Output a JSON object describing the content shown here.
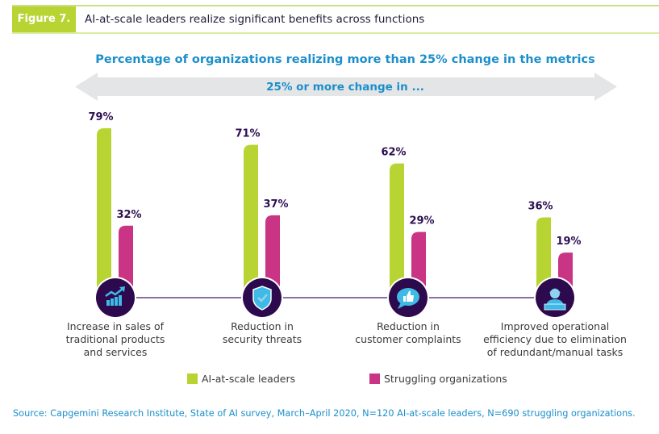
{
  "header": {
    "figure_label": "Figure 7.",
    "title": "AI-at-scale leaders realize significant benefits across functions"
  },
  "colors": {
    "leaders": "#b7d433",
    "struggling": "#c93485",
    "icon_bg": "#2d0a4e",
    "icon_fg": "#3fb9e6",
    "accent_text": "#1b8fcb",
    "value_text": "#2d0f52",
    "arrow": "#e4e5e7",
    "connector": "#8b6fa3"
  },
  "chart_data": {
    "type": "bar",
    "title": "Percentage of organizations realizing more than 25% change in the metrics",
    "arrow_label": "25% or more change in ...",
    "xlabel": "",
    "ylabel": "",
    "ylim": [
      0,
      100
    ],
    "grid": false,
    "legend_position": "bottom",
    "categories": [
      {
        "lines": [
          "Increase in sales of",
          "traditional products",
          "and services"
        ],
        "icon": "sales-growth-chart-icon"
      },
      {
        "lines": [
          "Reduction in",
          "security threats"
        ],
        "icon": "security-shield-check-icon"
      },
      {
        "lines": [
          "Reduction in",
          "customer complaints"
        ],
        "icon": "thumbs-up-speech-bubble-icon"
      },
      {
        "lines": [
          "Improved operational",
          "efficiency due to elimination",
          "of redundant/manual tasks"
        ],
        "icon": "worker-at-laptop-icon"
      }
    ],
    "series": [
      {
        "name": "AI-at-scale leaders",
        "values": [
          79,
          71,
          62,
          36
        ],
        "labels": [
          "79%",
          "71%",
          "62%",
          "36%"
        ]
      },
      {
        "name": "Struggling organizations",
        "values": [
          32,
          37,
          29,
          19
        ],
        "labels": [
          "32%",
          "37%",
          "29%",
          "19%"
        ]
      }
    ]
  },
  "legend": {
    "items": [
      "AI-at-scale leaders",
      "Struggling organizations"
    ]
  },
  "source": "Source: Capgemini Research Institute, State of AI survey, March–April 2020, N=120 AI-at-scale leaders, N=690 struggling organizations."
}
